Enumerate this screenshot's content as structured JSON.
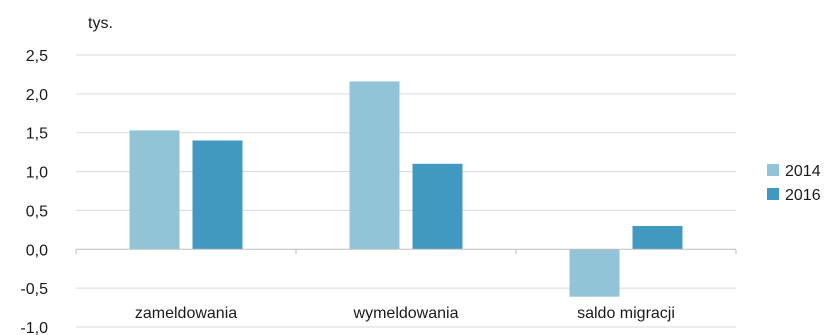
{
  "chart_data": {
    "type": "bar",
    "unit_label": "tys.",
    "categories": [
      "zameldowania",
      "wymeldowania",
      "saldo migracji"
    ],
    "series": [
      {
        "name": "2014",
        "values": [
          1.53,
          2.16,
          -0.61
        ],
        "color": "#92c4d8"
      },
      {
        "name": "2016",
        "values": [
          1.4,
          1.1,
          0.3
        ],
        "color": "#4199c1"
      }
    ],
    "ylim": [
      -1.0,
      2.5
    ],
    "yticks": [
      "2,5",
      "2,0",
      "1,5",
      "1,0",
      "0,5",
      "0,0",
      "-0,5",
      "-1,0"
    ],
    "grid": true,
    "legend_position": "right"
  }
}
